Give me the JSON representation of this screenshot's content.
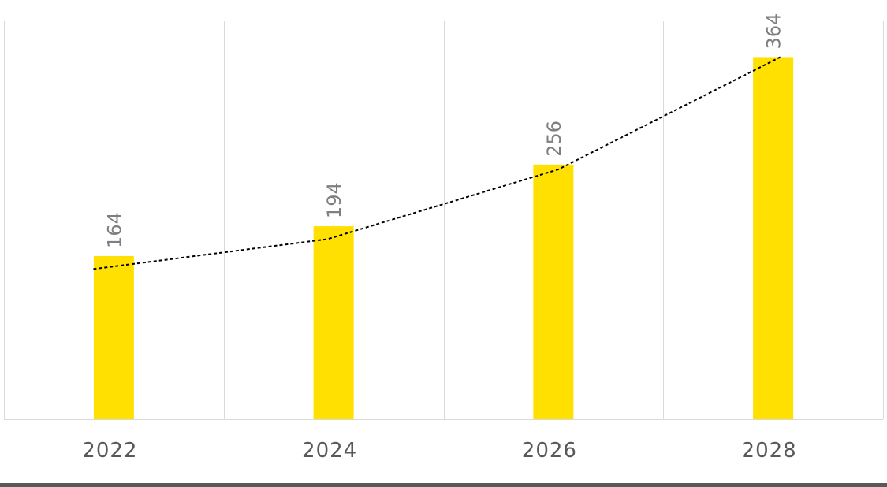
{
  "chart_data": {
    "type": "bar",
    "categories": [
      "2022",
      "2024",
      "2026",
      "2028"
    ],
    "values": [
      164,
      194,
      256,
      364
    ],
    "data_labels": [
      "164",
      "194",
      "256",
      "364"
    ],
    "trendline": {
      "style": "dashed",
      "values": [
        151,
        181,
        251,
        364
      ]
    },
    "title": "",
    "xlabel": "",
    "ylabel": "",
    "ylim": [
      0,
      400
    ],
    "grid": "vertical",
    "legend": "none",
    "colors": {
      "bar": "#FFE000",
      "trendline": "#000000",
      "gridline": "#d9d9d9",
      "tick_label": "#595959",
      "data_label": "#7f7f7f",
      "bottom_band": "#595959"
    }
  }
}
